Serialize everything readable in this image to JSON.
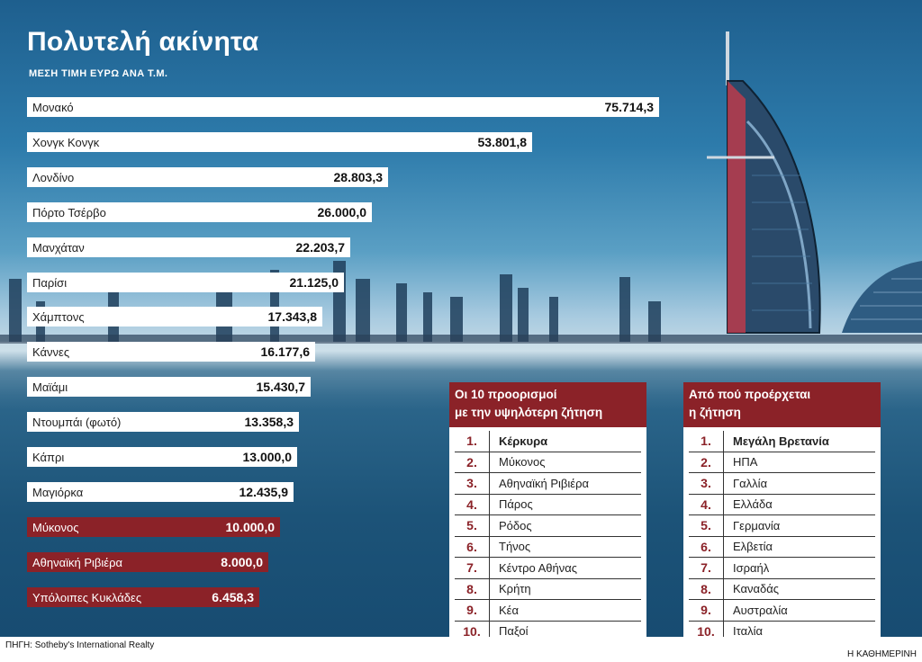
{
  "title": "Πολυτελή ακίνητα",
  "subtitle": "ΜΕΣΗ ΤΙΜΗ ΕΥΡΩ ΑΝΑ Τ.Μ.",
  "chart_data": {
    "type": "bar",
    "orientation": "horizontal",
    "title": "Πολυτελή ακίνητα",
    "ylabel": "ΜΕΣΗ ΤΙΜΗ ΕΥΡΩ ΑΝΑ Τ.Μ.",
    "categories": [
      "Μονακό",
      "Χονγκ Κονγκ",
      "Λονδίνο",
      "Πόρτο Τσέρβο",
      "Μανχάταν",
      "Παρίσι",
      "Χάμπτονς",
      "Κάννες",
      "Μαϊάμι",
      "Ντουμπάι (φωτό)",
      "Κάπρι",
      "Μαγιόρκα",
      "Μύκονος",
      "Αθηναϊκή Ριβιέρα",
      "Υπόλοιπες Κυκλάδες"
    ],
    "values": [
      75714.3,
      53801.8,
      28803.3,
      26000.0,
      22203.7,
      21125.0,
      17343.8,
      16177.6,
      15430.7,
      13358.3,
      13000.0,
      12435.9,
      10000.0,
      8000.0,
      6458.3
    ],
    "labels": [
      "75.714,3",
      "53.801,8",
      "28.803,3",
      "26.000,0",
      "22.203,7",
      "21.125,0",
      "17.343,8",
      "16.177,6",
      "15.430,7",
      "13.358,3",
      "13.000,0",
      "12.435,9",
      "10.000,0",
      "8.000,0",
      "6.458,3"
    ],
    "highlight": [
      false,
      false,
      false,
      false,
      false,
      false,
      false,
      false,
      false,
      false,
      false,
      false,
      true,
      true,
      true
    ],
    "colors": {
      "normal": "#ffffff",
      "highlight": "#8b2228"
    }
  },
  "destinations": {
    "title": "Οι 10 προορισμοί με την υψηλότερη ζήτηση",
    "title_line1": "Οι 10 προορισμοί",
    "title_line2": "με την υψηλότερη ζήτηση",
    "items": [
      {
        "rank": "1.",
        "name": "Κέρκυρα"
      },
      {
        "rank": "2.",
        "name": "Μύκονος"
      },
      {
        "rank": "3.",
        "name": "Αθηναϊκή Ριβιέρα"
      },
      {
        "rank": "4.",
        "name": "Πάρος"
      },
      {
        "rank": "5.",
        "name": "Ρόδος"
      },
      {
        "rank": "6.",
        "name": "Τήνος"
      },
      {
        "rank": "7.",
        "name": "Κέντρο Αθήνας"
      },
      {
        "rank": "8.",
        "name": "Κρήτη"
      },
      {
        "rank": "9.",
        "name": "Κέα"
      },
      {
        "rank": "10.",
        "name": "Παξοί"
      }
    ]
  },
  "demand_origin": {
    "title_line1": "Από πού προέρχεται",
    "title_line2": "η ζήτηση",
    "items": [
      {
        "rank": "1.",
        "name": "Μεγάλη Βρετανία"
      },
      {
        "rank": "2.",
        "name": "ΗΠΑ"
      },
      {
        "rank": "3.",
        "name": "Γαλλία"
      },
      {
        "rank": "4.",
        "name": "Ελλάδα"
      },
      {
        "rank": "5.",
        "name": "Γερμανία"
      },
      {
        "rank": "6.",
        "name": "Ελβετία"
      },
      {
        "rank": "7.",
        "name": "Ισραήλ"
      },
      {
        "rank": "8.",
        "name": "Καναδάς"
      },
      {
        "rank": "9.",
        "name": "Αυστραλία"
      },
      {
        "rank": "10.",
        "name": "Ιταλία"
      }
    ]
  },
  "source": "ΠΗΓΗ: Sotheby's International Realty",
  "publisher": "Η ΚΑΘΗΜΕΡΙΝΗ"
}
